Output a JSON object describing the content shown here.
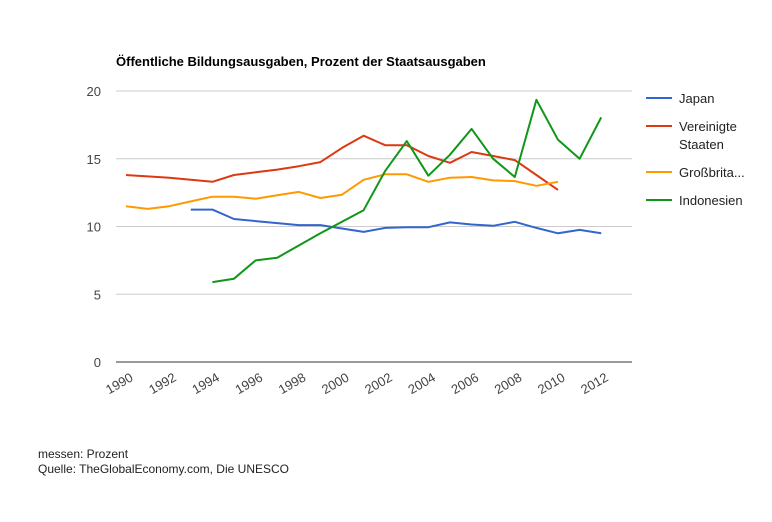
{
  "chart_data": {
    "type": "line",
    "title": "Öffentliche Bildungsausgaben, Prozent der Staatsausgaben",
    "xlabel": "",
    "ylabel": "",
    "ylim": [
      0,
      20
    ],
    "y_ticks": [
      "0",
      "5",
      "10",
      "15",
      "20"
    ],
    "x": [
      1990,
      1991,
      1992,
      1993,
      1994,
      1995,
      1996,
      1997,
      1998,
      1999,
      2000,
      2001,
      2002,
      2003,
      2004,
      2005,
      2006,
      2007,
      2008,
      2009,
      2010,
      2011,
      2012
    ],
    "x_ticks": [
      "1990",
      "1992",
      "1994",
      "1996",
      "1998",
      "2000",
      "2002",
      "2004",
      "2006",
      "2008",
      "2010",
      "2012"
    ],
    "grid": true,
    "legend_position": "right",
    "series": [
      {
        "name": "Japan",
        "color": "#3366cc",
        "values": [
          null,
          null,
          null,
          11.25,
          11.25,
          10.55,
          10.4,
          10.25,
          10.1,
          10.1,
          9.85,
          9.6,
          9.9,
          9.95,
          9.95,
          10.3,
          10.15,
          10.05,
          10.35,
          9.9,
          9.5,
          9.75,
          9.5
        ]
      },
      {
        "name": "Vereinigte Staaten",
        "legend_lines": [
          "Vereinigte",
          "Staaten"
        ],
        "color": "#dc3912",
        "values": [
          13.8,
          13.7,
          13.6,
          13.45,
          13.3,
          13.8,
          14.0,
          14.2,
          14.45,
          14.75,
          15.8,
          16.7,
          16.0,
          16.0,
          15.2,
          14.7,
          15.5,
          15.2,
          14.9,
          13.8,
          12.7,
          null,
          null
        ]
      },
      {
        "name": "Großbrita...",
        "color": "#ff9900",
        "values": [
          11.5,
          11.3,
          11.5,
          11.85,
          12.2,
          12.2,
          12.05,
          12.3,
          12.55,
          12.1,
          12.35,
          13.45,
          13.85,
          13.85,
          13.3,
          13.6,
          13.65,
          13.4,
          13.35,
          13.0,
          13.3,
          null,
          null
        ]
      },
      {
        "name": "Indonesien",
        "color": "#109618",
        "values": [
          null,
          null,
          null,
          null,
          5.9,
          6.15,
          7.5,
          7.7,
          8.6,
          9.5,
          10.35,
          11.2,
          14.1,
          16.3,
          13.75,
          15.3,
          17.2,
          15.0,
          13.65,
          19.35,
          16.4,
          15.0,
          18.05
        ]
      }
    ]
  },
  "footer": {
    "unit": "messen: Prozent",
    "source": "Quelle: TheGlobalEconomy.com, Die UNESCO"
  }
}
